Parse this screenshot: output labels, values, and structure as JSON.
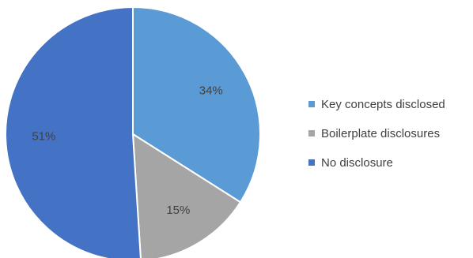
{
  "chart_data": {
    "type": "pie",
    "title": "",
    "slices": [
      {
        "label": "Key concepts disclosed",
        "value": 34,
        "display": "34%",
        "color": "#5b9bd5"
      },
      {
        "label": "Boilerplate disclosures",
        "value": 15,
        "display": "15%",
        "color": "#a5a5a5"
      },
      {
        "label": "No disclosure",
        "value": 51,
        "display": "51%",
        "color": "#4472c4"
      }
    ],
    "start_angle_deg": 0,
    "direction": "clockwise",
    "legend_position": "right"
  }
}
